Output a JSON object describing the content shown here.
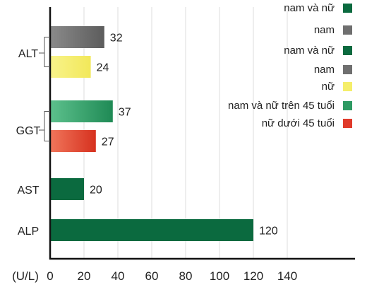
{
  "chart_data": {
    "type": "bar",
    "orientation": "horizontal",
    "unit_label": "(U/L)",
    "xlim": [
      0,
      140
    ],
    "x_ticks": [
      0,
      20,
      40,
      60,
      80,
      100,
      120,
      140
    ],
    "grid": "vertical",
    "legend_placement": "top-right",
    "categories": [
      {
        "name": "ALT",
        "bars": [
          {
            "value": 32,
            "series": "nam"
          },
          {
            "value": 24,
            "series": "nữ"
          }
        ]
      },
      {
        "name": "GGT",
        "bars": [
          {
            "value": 37,
            "series": "nam và nữ trên 45 tuổi"
          },
          {
            "value": 27,
            "series": "nữ dưới 45 tuổi"
          }
        ]
      },
      {
        "name": "AST",
        "bars": [
          {
            "value": 20,
            "series": "nam và nữ"
          }
        ]
      },
      {
        "name": "ALP",
        "bars": [
          {
            "value": 120,
            "series": "nam và nữ"
          }
        ]
      }
    ],
    "legend": [
      {
        "label": "nam và nữ",
        "color": "#0b6a3f"
      },
      {
        "label": "nam",
        "color": "#6f6f6f"
      },
      {
        "label": "nam và nữ",
        "color": "#0b6a3f"
      },
      {
        "label": "nam",
        "color": "#6f6f6f"
      },
      {
        "label": "nữ",
        "color": "#f5ee6a"
      },
      {
        "label": "nam và nữ trên 45 tuổi",
        "color": "#2e9a63"
      },
      {
        "label": "nữ dưới 45 tuổi",
        "color": "#e03a2a"
      }
    ],
    "series_colors": {
      "nam và nữ": "#0b6a3f",
      "nam": "#6f6f6f",
      "nữ": "#f5ee6a",
      "nam và nữ trên 45 tuổi": "#2e9a63",
      "nữ dưới 45 tuổi": "#e03a2a"
    }
  }
}
